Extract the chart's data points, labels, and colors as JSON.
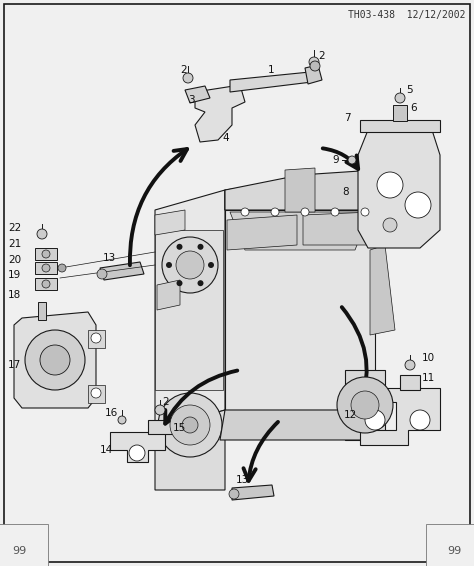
{
  "title_left": "TH03-438",
  "title_right": "12/12/2002",
  "bg_color": "#f0f0f0",
  "fg_color": "#1a1a1a",
  "fig_width": 4.74,
  "fig_height": 5.66,
  "dpi": 100,
  "watermark": "99",
  "arrow_color": "#111111",
  "arrow_lw": 2.8,
  "arrow_ms": 22
}
